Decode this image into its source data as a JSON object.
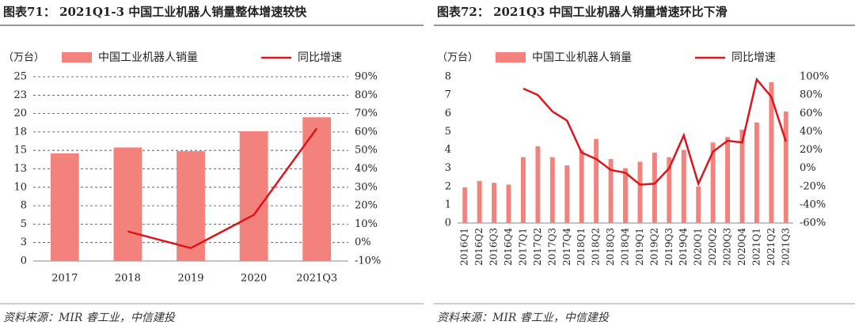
{
  "chart_data": [
    {
      "type": "combo",
      "title": "图表71： 2021Q1-3 中国工业机器人销量整体增速较快",
      "y_label": "（万台）",
      "categories": [
        "2017",
        "2018",
        "2019",
        "2020",
        "2021Q3"
      ],
      "series": [
        {
          "name": "中国工业机器人销量",
          "type": "bar",
          "color": "#f4827c",
          "values": [
            14.6,
            15.4,
            14.9,
            17.6,
            19.5
          ]
        },
        {
          "name": "同比增速",
          "type": "line",
          "axis": "y2",
          "color": "#d9161c",
          "values": [
            null,
            6,
            -3,
            15,
            62
          ]
        }
      ],
      "ylim": [
        0,
        25
      ],
      "yticks": [
        0,
        {
          "value": 2.5,
          "label": "3"
        },
        5,
        {
          "value": 7.5,
          "label": "8"
        },
        10,
        {
          "value": 12.5,
          "label": "13"
        },
        15,
        {
          "value": 17.5,
          "label": "18"
        },
        20,
        {
          "value": 22.5,
          "label": "23"
        },
        25
      ],
      "y2lim": [
        -10,
        90
      ],
      "y2ticks": [
        {
          "value": -10,
          "label": "-10%"
        },
        {
          "value": 0,
          "label": "0%"
        },
        {
          "value": 10,
          "label": "10%"
        },
        {
          "value": 20,
          "label": "20%"
        },
        {
          "value": 30,
          "label": "30%"
        },
        {
          "value": 40,
          "label": "40%"
        },
        {
          "value": 50,
          "label": "50%"
        },
        {
          "value": 60,
          "label": "60%"
        },
        {
          "value": 70,
          "label": "70%"
        },
        {
          "value": 80,
          "label": "80%"
        },
        {
          "value": 90,
          "label": "90%"
        }
      ],
      "grid": true,
      "source": "资料来源：MIR 睿工业，中信建投"
    },
    {
      "type": "combo",
      "title": "图表72： 2021Q3 中国工业机器人销量增速环比下滑",
      "y_label": "（万台）",
      "categories": [
        "2016Q1",
        "2016Q2",
        "2016Q3",
        "2016Q4",
        "2017Q1",
        "2017Q2",
        "2017Q3",
        "2017Q4",
        "2018Q1",
        "2018Q2",
        "2018Q3",
        "2018Q4",
        "2019Q1",
        "2019Q2",
        "2019Q3",
        "2019Q4",
        "2020Q1",
        "2020Q2",
        "2020Q3",
        "2020Q4",
        "2021Q1",
        "2021Q2",
        "2021Q3"
      ],
      "series": [
        {
          "name": "中国工业机器人销量",
          "type": "bar",
          "color": "#f4827c",
          "values": [
            1.95,
            2.3,
            2.2,
            2.1,
            3.6,
            4.2,
            3.6,
            3.15,
            4.0,
            4.6,
            3.5,
            3.0,
            3.35,
            3.85,
            3.6,
            4.0,
            2.0,
            4.4,
            4.7,
            5.1,
            5.5,
            7.7,
            6.1
          ]
        },
        {
          "name": "同比增速",
          "type": "line",
          "axis": "y2",
          "color": "#d9161c",
          "values": [
            null,
            null,
            null,
            null,
            87,
            80,
            62,
            52,
            17,
            10,
            -2,
            -5,
            -18,
            -17,
            0,
            36,
            -17,
            18,
            30,
            28,
            97,
            78,
            29
          ]
        }
      ],
      "ylim": [
        0,
        8
      ],
      "yticks": [
        0,
        1,
        2,
        3,
        4,
        5,
        6,
        7,
        8
      ],
      "y2lim": [
        -60,
        100
      ],
      "y2ticks": [
        {
          "value": -60,
          "label": "-60%"
        },
        {
          "value": -40,
          "label": "-40%"
        },
        {
          "value": -20,
          "label": "-20%"
        },
        {
          "value": 0,
          "label": "0%"
        },
        {
          "value": 20,
          "label": "20%"
        },
        {
          "value": 40,
          "label": "40%"
        },
        {
          "value": 60,
          "label": "60%"
        },
        {
          "value": 80,
          "label": "80%"
        },
        {
          "value": 100,
          "label": "100%"
        }
      ],
      "grid": false,
      "source": "资料来源：MIR 睿工业，中信建投"
    }
  ]
}
